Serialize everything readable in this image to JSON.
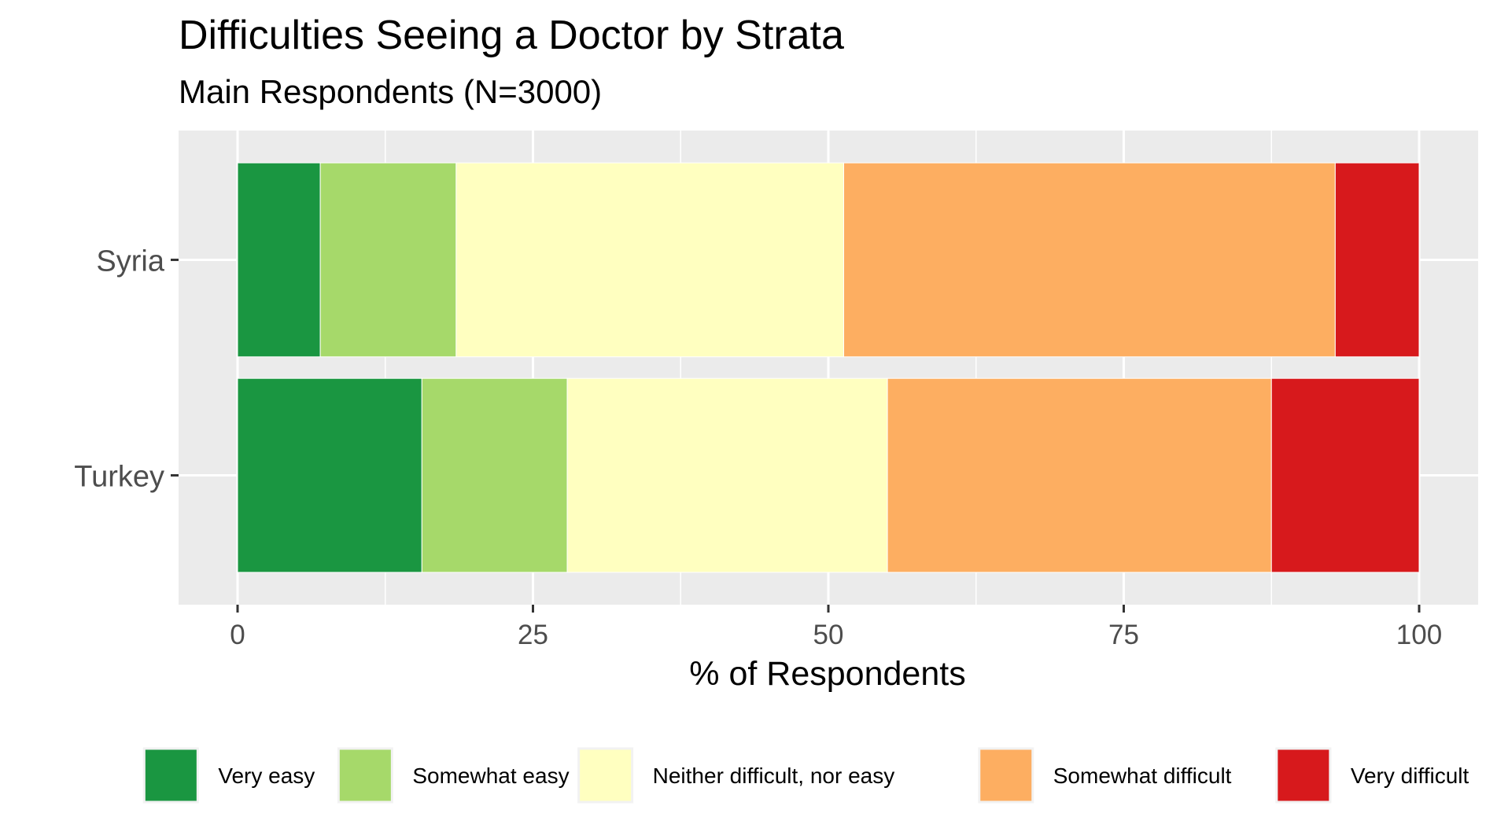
{
  "chart_data": {
    "type": "bar",
    "orientation": "horizontal",
    "stacked": true,
    "title": "Difficulties Seeing a Doctor by Strata",
    "subtitle": "Main Respondents (N=3000)",
    "xlabel": "% of Respondents",
    "ylabel": "",
    "xlim": [
      0,
      100
    ],
    "x_ticks": [
      "0",
      "25",
      "50",
      "75",
      "100"
    ],
    "categories": [
      "Syria",
      "Turkey"
    ],
    "grid": true,
    "legend_position": "bottom",
    "series": [
      {
        "name": "Very easy",
        "color": "#1a9641",
        "values": [
          7.0,
          15.6
        ]
      },
      {
        "name": "Somewhat easy",
        "color": "#a6d96a",
        "values": [
          11.5,
          12.3
        ]
      },
      {
        "name": "Neither difficult, nor easy",
        "color": "#ffffc0",
        "values": [
          32.8,
          27.1
        ]
      },
      {
        "name": "Somewhat difficult",
        "color": "#fdae61",
        "values": [
          41.6,
          32.5
        ]
      },
      {
        "name": "Very difficult",
        "color": "#d7191c",
        "values": [
          7.1,
          12.5
        ]
      }
    ]
  }
}
